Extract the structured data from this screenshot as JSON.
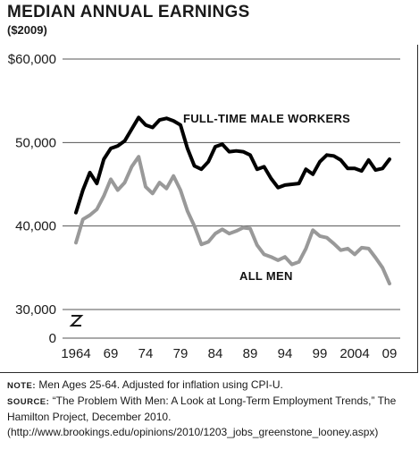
{
  "title": "MEDIAN ANNUAL EARNINGS",
  "subtitle": "($2009)",
  "chart_data": {
    "type": "line",
    "title": "MEDIAN ANNUAL EARNINGS",
    "subtitle": "($2009)",
    "x": [
      1964,
      1965,
      1966,
      1967,
      1968,
      1969,
      1970,
      1971,
      1972,
      1973,
      1974,
      1975,
      1976,
      1977,
      1978,
      1979,
      1980,
      1981,
      1982,
      1983,
      1984,
      1985,
      1986,
      1987,
      1988,
      1989,
      1990,
      1991,
      1992,
      1993,
      1994,
      1995,
      1996,
      1997,
      1998,
      1999,
      2000,
      2001,
      2002,
      2003,
      2004,
      2005,
      2006,
      2007,
      2008,
      2009
    ],
    "series": [
      {
        "name": "FULL-TIME MALE WORKERS",
        "color": "#000000",
        "values": [
          41600,
          44300,
          46400,
          45100,
          48000,
          49300,
          49600,
          50200,
          51600,
          53000,
          52100,
          51800,
          52700,
          52900,
          52600,
          52100,
          49300,
          47200,
          46800,
          47700,
          49500,
          49800,
          48900,
          49000,
          48900,
          48500,
          46800,
          47100,
          45700,
          44600,
          44900,
          45000,
          45100,
          46800,
          46200,
          47700,
          48500,
          48400,
          47900,
          46900,
          46900,
          46600,
          47900,
          46700,
          46900,
          48000
        ]
      },
      {
        "name": "ALL MEN",
        "color": "#999999",
        "values": [
          38000,
          40800,
          41300,
          42000,
          43600,
          45600,
          44300,
          45200,
          47100,
          48300,
          44700,
          43900,
          45200,
          44500,
          46000,
          44300,
          41800,
          40000,
          37800,
          38100,
          39100,
          39600,
          39100,
          39400,
          39800,
          39700,
          37700,
          36600,
          36300,
          35900,
          36300,
          35400,
          35700,
          37300,
          39500,
          38800,
          38600,
          37900,
          37100,
          37300,
          36600,
          37400,
          37300,
          36200,
          35000,
          33100
        ]
      }
    ],
    "xticks": [
      "1964",
      "69",
      "74",
      "79",
      "84",
      "89",
      "94",
      "99",
      "2004",
      "09"
    ],
    "yticks": [
      "$60,000",
      "50,000",
      "40,000",
      "30,000",
      "0"
    ],
    "ylim": [
      30000,
      60000
    ],
    "axis_break": true,
    "grid": "horizontal"
  },
  "notes": {
    "note_label": "NOTE:",
    "note_text": " Men Ages 25-64. Adjusted for inflation using CPI-U.",
    "source_label": "SOURCE:",
    "source_text": " “The Problem With Men: A Look at Long-Term Employment Trends,” The Hamilton Project, December 2010. (http://www.brookings.edu/opinions/2010/1203_jobs_greenstone_looney.aspx)"
  }
}
